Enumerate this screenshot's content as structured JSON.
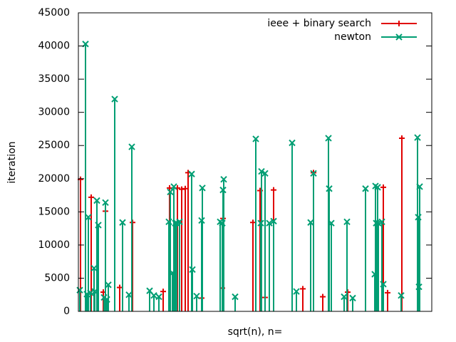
{
  "chart_data": {
    "type": "impulse",
    "x_label": "sqrt(n), n=",
    "y_label": "iteration",
    "xlim": [
      0,
      496
    ],
    "ylim": [
      0,
      45000
    ],
    "yticks": [
      0,
      5000,
      10000,
      15000,
      20000,
      25000,
      30000,
      35000,
      40000,
      45000
    ],
    "legend": "top-right",
    "series": [
      {
        "name": "ieee + binary search",
        "color": "#e00000",
        "marker": "plus",
        "x": [
          3,
          18,
          35,
          38,
          58,
          76,
          119,
          128,
          139,
          145,
          150,
          154,
          173,
          202,
          203,
          245,
          255,
          262,
          274,
          315,
          330,
          343,
          378,
          428,
          434,
          454
        ],
        "values": [
          19900,
          17200,
          2900,
          15100,
          3600,
          13400,
          3000,
          18600,
          18600,
          18400,
          18500,
          20900,
          2000,
          3500,
          14000,
          13400,
          18200,
          2100,
          18300,
          3400,
          20900,
          2200,
          2900,
          18700,
          2800,
          26100
        ]
      },
      {
        "name": "newton",
        "color": "#009e73",
        "marker": "cross",
        "x": [
          2,
          10,
          12,
          14,
          17,
          22,
          23,
          26,
          28,
          36,
          38,
          40,
          42,
          51,
          62,
          71,
          75,
          100,
          106,
          113,
          127,
          129,
          132,
          134,
          136,
          138,
          142,
          159,
          160,
          166,
          173,
          174,
          199,
          202,
          203,
          204,
          220,
          249,
          256,
          257,
          262,
          268,
          274,
          300,
          306,
          326,
          330,
          351,
          352,
          355,
          373,
          377,
          385,
          403,
          416,
          417,
          418,
          420,
          421,
          426,
          428,
          453,
          476,
          477,
          478,
          479
        ],
        "values": [
          3200,
          40300,
          2600,
          14200,
          2800,
          6500,
          3000,
          16700,
          13000,
          2100,
          16400,
          1800,
          4000,
          32000,
          13400,
          2500,
          24800,
          3100,
          2400,
          2200,
          13500,
          18000,
          5800,
          18800,
          13300,
          13300,
          13500,
          20700,
          6300,
          2300,
          13700,
          18600,
          13500,
          13300,
          18300,
          19900,
          2200,
          26000,
          13300,
          21100,
          20800,
          13300,
          13600,
          25400,
          3000,
          13400,
          20800,
          26100,
          18500,
          13300,
          2200,
          13500,
          2000,
          18500,
          5600,
          18900,
          13300,
          18700,
          13300,
          13500,
          4100,
          2400,
          26200,
          14200,
          3700,
          18800
        ]
      }
    ]
  }
}
